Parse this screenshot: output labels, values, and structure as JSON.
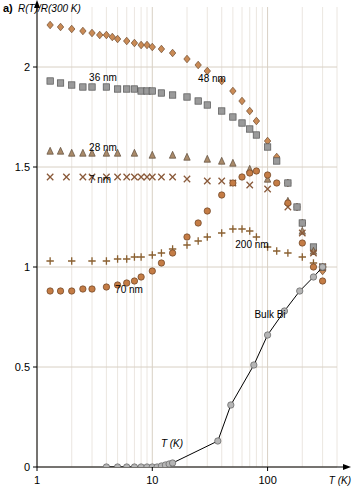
{
  "chart_data": {
    "type": "scatter",
    "title": "a)",
    "y_label": "R(T)/R(300 K)",
    "x_label": "T (K)",
    "annotations": [
      "T (K)"
    ],
    "log": "x",
    "grid": true,
    "xlim": [
      1,
      400
    ],
    "xticks": [
      1,
      10,
      100
    ],
    "ylim": [
      0,
      2.3
    ],
    "yticks": [
      0,
      0.5,
      1,
      1.5,
      2
    ],
    "series": [
      {
        "name": "48 nm",
        "color": "#c98a55",
        "marker": "diamond",
        "x": [
          1.3,
          1.6,
          2,
          2.5,
          3,
          3.5,
          4,
          4.5,
          5,
          6,
          7,
          8,
          9,
          10,
          12,
          15,
          20,
          25,
          30,
          40,
          50,
          60,
          70,
          80,
          100,
          120,
          150,
          180,
          200,
          250,
          300
        ],
        "values": [
          2.21,
          2.2,
          2.19,
          2.18,
          2.17,
          2.16,
          2.16,
          2.15,
          2.14,
          2.13,
          2.12,
          2.11,
          2.11,
          2.1,
          2.09,
          2.07,
          2.04,
          2.01,
          1.98,
          1.93,
          1.88,
          1.83,
          1.78,
          1.73,
          1.63,
          1.55,
          1.42,
          1.3,
          1.22,
          1.08,
          0.98
        ]
      },
      {
        "name": "36 nm",
        "color": "#9a9a9a",
        "marker": "square",
        "x": [
          1.3,
          1.6,
          2,
          2.5,
          3,
          4,
          5,
          6,
          7,
          8,
          9,
          10,
          12,
          15,
          20,
          25,
          30,
          40,
          50,
          60,
          70,
          80,
          100,
          120,
          150,
          180,
          200,
          250,
          300
        ],
        "values": [
          1.93,
          1.92,
          1.91,
          1.9,
          1.9,
          1.9,
          1.89,
          1.89,
          1.89,
          1.88,
          1.88,
          1.88,
          1.87,
          1.86,
          1.85,
          1.83,
          1.81,
          1.78,
          1.75,
          1.72,
          1.69,
          1.66,
          1.6,
          1.53,
          1.42,
          1.3,
          1.22,
          1.1,
          1.0
        ]
      },
      {
        "name": "28 nm",
        "color": "#a98a6a",
        "marker": "triangle",
        "x": [
          1.3,
          1.6,
          2,
          2.5,
          3,
          4,
          5,
          7,
          10,
          15,
          20,
          30,
          40,
          50,
          70,
          100,
          150,
          200,
          250,
          300
        ],
        "values": [
          1.58,
          1.58,
          1.57,
          1.57,
          1.57,
          1.57,
          1.57,
          1.57,
          1.56,
          1.56,
          1.55,
          1.54,
          1.53,
          1.52,
          1.49,
          1.44,
          1.33,
          1.18,
          1.08,
          1.0
        ]
      },
      {
        "name": "7 nm",
        "color": "#8a5a3a",
        "marker": "x",
        "x": [
          1.3,
          1.8,
          2.5,
          3,
          4,
          5,
          6,
          7,
          8,
          9,
          10,
          12,
          15,
          20,
          30,
          40,
          50,
          70,
          100,
          150,
          200,
          250,
          300
        ],
        "values": [
          1.45,
          1.45,
          1.45,
          1.45,
          1.45,
          1.45,
          1.45,
          1.45,
          1.45,
          1.45,
          1.45,
          1.45,
          1.45,
          1.44,
          1.43,
          1.43,
          1.42,
          1.41,
          1.39,
          1.3,
          1.17,
          1.07,
          1.0
        ]
      },
      {
        "name": "200 nm",
        "color": "#8a6030",
        "marker": "plus",
        "x": [
          1.3,
          2,
          3,
          4,
          5,
          6,
          7,
          8,
          10,
          12,
          15,
          20,
          25,
          30,
          40,
          50,
          60,
          70,
          80,
          100,
          120,
          150,
          200,
          250,
          300
        ],
        "values": [
          1.03,
          1.03,
          1.03,
          1.03,
          1.04,
          1.04,
          1.05,
          1.05,
          1.06,
          1.07,
          1.09,
          1.11,
          1.13,
          1.15,
          1.17,
          1.19,
          1.19,
          1.18,
          1.15,
          1.1,
          1.08,
          1.07,
          1.05,
          1.02,
          1.0
        ]
      },
      {
        "name": "70 nm",
        "color": "#c47c45",
        "marker": "circle",
        "x": [
          1.3,
          1.6,
          2,
          2.5,
          3,
          4,
          5,
          6,
          7,
          8,
          10,
          12,
          15,
          20,
          25,
          30,
          40,
          50,
          60,
          70,
          80,
          100,
          120,
          150,
          200,
          250,
          300
        ],
        "values": [
          0.88,
          0.88,
          0.88,
          0.89,
          0.89,
          0.9,
          0.91,
          0.92,
          0.93,
          0.95,
          0.98,
          1.02,
          1.07,
          1.15,
          1.22,
          1.28,
          1.36,
          1.42,
          1.45,
          1.47,
          1.48,
          1.46,
          1.42,
          1.32,
          1.12,
          1.0,
          0.93
        ]
      },
      {
        "name": "Bulk Bi",
        "color": "#b5b5b5",
        "marker": "circle",
        "line_style": "solid",
        "x": [
          4,
          5,
          6,
          7,
          8,
          9,
          10,
          11,
          12,
          13,
          14,
          15,
          37,
          48,
          76,
          100,
          140,
          190,
          250,
          300
        ],
        "values": [
          0,
          0,
          0,
          0,
          0,
          0,
          0,
          0,
          0.005,
          0.01,
          0.015,
          0.02,
          0.13,
          0.31,
          0.51,
          0.66,
          0.78,
          0.88,
          0.95,
          1.0
        ]
      }
    ]
  }
}
